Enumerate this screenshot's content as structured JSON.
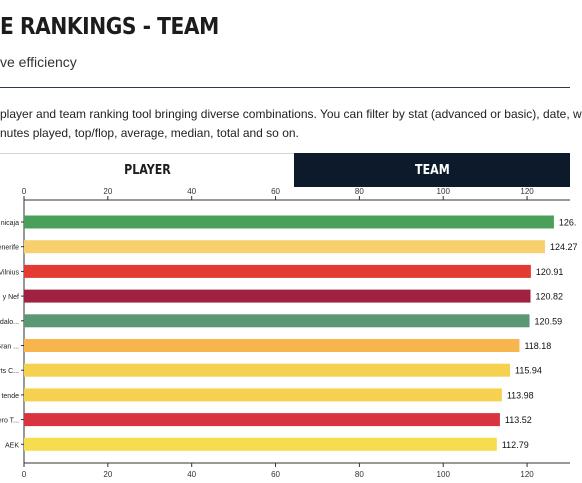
{
  "header": {
    "title": "E RANKINGS - TEAM",
    "subtitle": "ve efficiency"
  },
  "description": {
    "line1": "player and team ranking tool bringing diverse combinations. You can filter by stat (advanced or basic), date, w",
    "line2": "nutes played, top/flop, average, median, total and so on."
  },
  "tabs": {
    "player": "PLAYER",
    "team": "TEAM",
    "active": "team"
  },
  "chart_data": {
    "type": "bar",
    "orientation": "horizontal",
    "categories": [
      "nicaja",
      "enerife",
      "Vilnius",
      "y Nef",
      "dalo...",
      "Gran ...",
      "rts C...",
      "tende",
      "ero T...",
      "AEK"
    ],
    "values": [
      126.4,
      124.27,
      120.91,
      120.82,
      120.59,
      118.18,
      115.94,
      113.98,
      113.52,
      112.79
    ],
    "value_labels": [
      "126.",
      "124.27",
      "120.91",
      "120.82",
      "120.59",
      "118.18",
      "115.94",
      "113.98",
      "113.52",
      "112.79"
    ],
    "colors": [
      "#4aa05a",
      "#f6d06f",
      "#e33b34",
      "#a12140",
      "#5a9873",
      "#f7b54c",
      "#f6d150",
      "#f6d150",
      "#d9333f",
      "#f6dd4f"
    ],
    "xticks": [
      0,
      20,
      40,
      60,
      80,
      100,
      120
    ],
    "xlim": [
      0,
      130
    ],
    "grid": false,
    "xlabel": "",
    "ylabel": ""
  }
}
